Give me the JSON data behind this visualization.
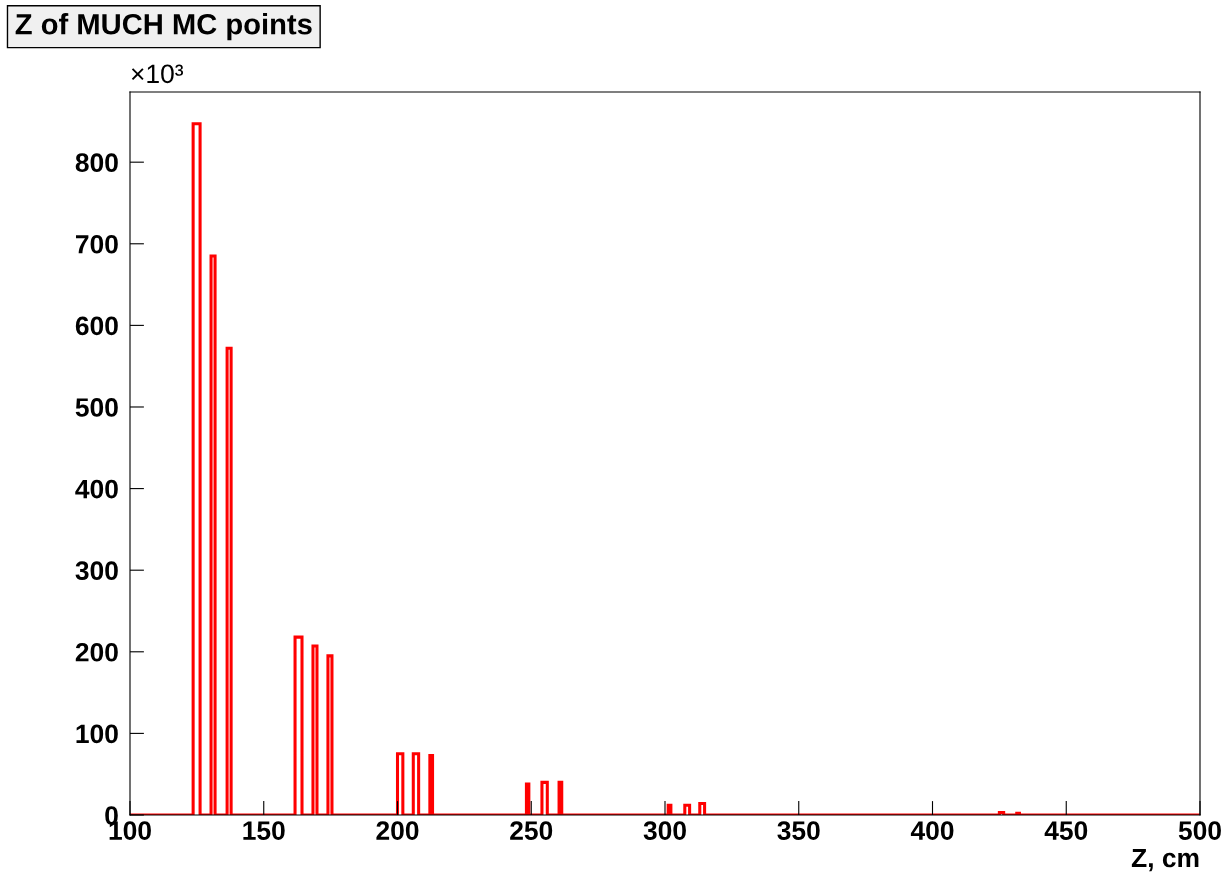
{
  "chart_data": {
    "type": "histogram",
    "title": "Z of MUCH MC points",
    "xlabel": "Z, cm",
    "annotations": [
      "×10³"
    ],
    "bins": [
      100,
      123.6,
      126.2,
      130.3,
      131.8,
      136.3,
      137.8,
      161.7,
      164.3,
      168.4,
      169.9,
      174.0,
      175.5,
      200.0,
      202.0,
      205.9,
      207.9,
      212.1,
      213.1,
      248.2,
      249.1,
      254.0,
      256.0,
      260.4,
      261.4,
      301.2,
      302.2,
      307.4,
      309.2,
      313.0,
      314.8,
      425.0,
      426.6,
      431.5,
      432.5,
      500
    ],
    "values": [
      0,
      847,
      0,
      685,
      0,
      572,
      0,
      218,
      0,
      207,
      0,
      195,
      0,
      75,
      0,
      75,
      0,
      73,
      0,
      38,
      0,
      40,
      0,
      40,
      0,
      12,
      0,
      12,
      0,
      14,
      0,
      3,
      0,
      2,
      0
    ],
    "color": "#ff0000",
    "xlim": [
      100,
      500
    ],
    "ylim": [
      0,
      886
    ],
    "xticks": [
      100,
      150,
      200,
      250,
      300,
      350,
      400,
      450,
      500
    ],
    "yticks": [
      0,
      100,
      200,
      300,
      400,
      500,
      600,
      700,
      800
    ],
    "grid": false
  }
}
